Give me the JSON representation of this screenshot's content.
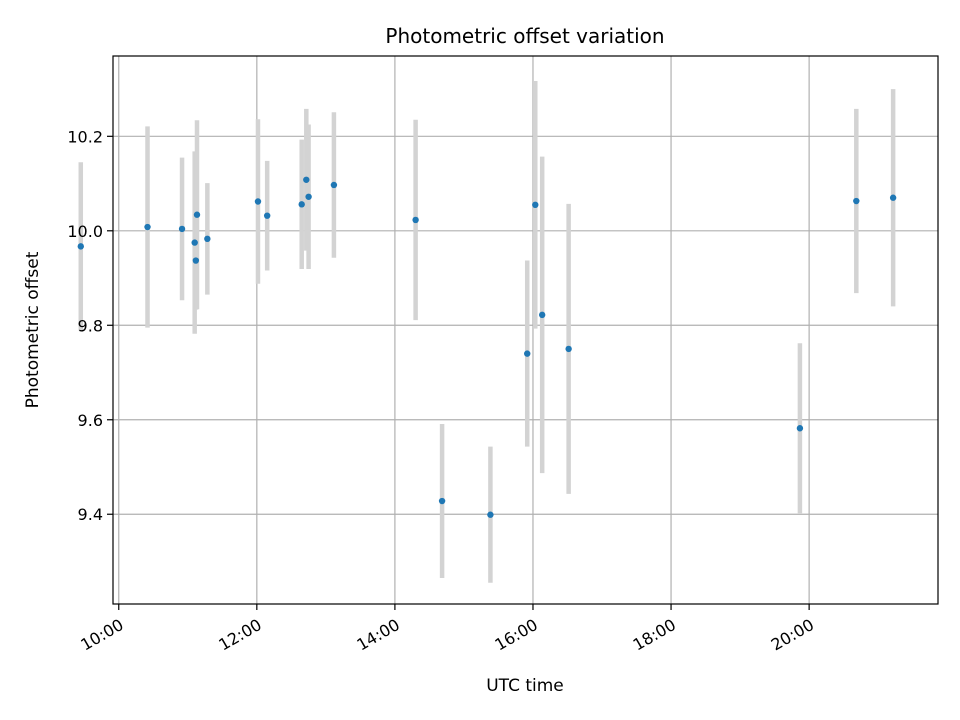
{
  "chart_data": {
    "type": "scatter",
    "title": "Photometric offset variation",
    "xlabel": "UTC time",
    "ylabel": "Photometric offset",
    "x_unit": "hours UTC",
    "xlim": [
      "09:55",
      "21:52"
    ],
    "ylim": [
      9.21,
      10.37
    ],
    "x_ticks": [
      "10:00",
      "12:00",
      "14:00",
      "16:00",
      "18:00",
      "20:00"
    ],
    "y_ticks": [
      "9.4",
      "9.6",
      "9.8",
      "10.0",
      "10.2"
    ],
    "grid": true,
    "colors": {
      "point": "#1f77b4",
      "errorbar": "#d3d3d3",
      "grid": "#b0b0b0"
    },
    "series": [
      {
        "points": [
          {
            "x": "09:27",
            "y": 9.967,
            "yerr": 0.178
          },
          {
            "x": "10:25",
            "y": 10.008,
            "yerr": 0.213
          },
          {
            "x": "10:55",
            "y": 10.004,
            "yerr": 0.151
          },
          {
            "x": "11:06",
            "y": 9.975,
            "yerr": 0.193
          },
          {
            "x": "11:07",
            "y": 9.937,
            "yerr": 0.104
          },
          {
            "x": "11:08",
            "y": 10.034,
            "yerr": 0.2
          },
          {
            "x": "11:17",
            "y": 9.983,
            "yerr": 0.118
          },
          {
            "x": "12:01",
            "y": 10.062,
            "yerr": 0.174
          },
          {
            "x": "12:09",
            "y": 10.032,
            "yerr": 0.116
          },
          {
            "x": "12:39",
            "y": 10.056,
            "yerr": 0.137
          },
          {
            "x": "12:43",
            "y": 10.108,
            "yerr": 0.15
          },
          {
            "x": "12:45",
            "y": 10.072,
            "yerr": 0.153
          },
          {
            "x": "13:07",
            "y": 10.097,
            "yerr": 0.154
          },
          {
            "x": "14:18",
            "y": 10.023,
            "yerr": 0.212
          },
          {
            "x": "14:41",
            "y": 9.428,
            "yerr": 0.163
          },
          {
            "x": "15:23",
            "y": 9.399,
            "yerr": 0.144
          },
          {
            "x": "15:55",
            "y": 9.74,
            "yerr": 0.197
          },
          {
            "x": "16:02",
            "y": 10.055,
            "yerr": 0.262
          },
          {
            "x": "16:08",
            "y": 9.822,
            "yerr": 0.335
          },
          {
            "x": "16:31",
            "y": 9.75,
            "yerr": 0.307
          },
          {
            "x": "19:52",
            "y": 9.582,
            "yerr": 0.18
          },
          {
            "x": "20:41",
            "y": 10.063,
            "yerr": 0.195
          },
          {
            "x": "21:13",
            "y": 10.07,
            "yerr": 0.23
          }
        ]
      }
    ]
  }
}
